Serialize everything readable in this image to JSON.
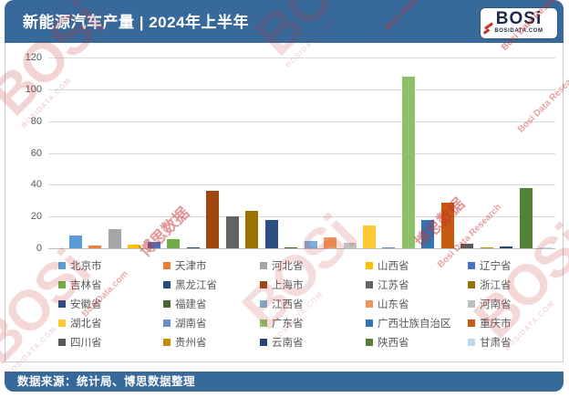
{
  "header": {
    "title": "新能源汽车产量 | 2024年上半年",
    "logo": {
      "text": "BOSi",
      "subtext": "BOSIDATA.COM"
    }
  },
  "footer": {
    "text": "数据来源：统计局、博思数据整理"
  },
  "watermark": {
    "brand": "BOSi",
    "brand_cn": "博思数据",
    "domain": "BOSIDATA.COM",
    "research": "Bosi Data Research",
    "site": "BosiData.com"
  },
  "colors": {
    "header_bg": "#38699B",
    "footer_bg": "#38699B",
    "grid": "#D9D9D9",
    "axis_text": "#595959",
    "watermark_red": "#C53030"
  },
  "chart_data": {
    "type": "bar",
    "title": "新能源汽车产量 | 2024年上半年",
    "xlabel": "",
    "ylabel": "",
    "ylim": [
      0,
      120
    ],
    "yticks": [
      0,
      20,
      40,
      60,
      80,
      100,
      120
    ],
    "grid": true,
    "legend_position": "bottom",
    "series": [
      {
        "name": "北京市",
        "value": 8,
        "color": "#5B9BD5"
      },
      {
        "name": "天津市",
        "value": 2,
        "color": "#ED7D31"
      },
      {
        "name": "河北省",
        "value": 12,
        "color": "#A5A5A5"
      },
      {
        "name": "山西省",
        "value": 2.5,
        "color": "#FFC000"
      },
      {
        "name": "辽宁省",
        "value": 4,
        "color": "#4472C4"
      },
      {
        "name": "吉林省",
        "value": 5.5,
        "color": "#70AD47"
      },
      {
        "name": "黑龙江省",
        "value": 0.6,
        "color": "#1F4E79"
      },
      {
        "name": "上海市",
        "value": 36,
        "color": "#9E480E"
      },
      {
        "name": "江苏省",
        "value": 20,
        "color": "#636363"
      },
      {
        "name": "浙江省",
        "value": 23.5,
        "color": "#997300"
      },
      {
        "name": "安徽省",
        "value": 18,
        "color": "#2E4D80"
      },
      {
        "name": "福建省",
        "value": 0.8,
        "color": "#43682B"
      },
      {
        "name": "江西省",
        "value": 4.5,
        "color": "#7CAFDD"
      },
      {
        "name": "山东省",
        "value": 7,
        "color": "#F1975A"
      },
      {
        "name": "河南省",
        "value": 3.5,
        "color": "#BFBFBF"
      },
      {
        "name": "湖北省",
        "value": 14.5,
        "color": "#FFC933"
      },
      {
        "name": "湖南省",
        "value": 0.8,
        "color": "#698ED0"
      },
      {
        "name": "广东省",
        "value": 108,
        "color": "#8CC168"
      },
      {
        "name": "广西壮族自治区",
        "value": 18,
        "color": "#2E75B6"
      },
      {
        "name": "重庆市",
        "value": 28.5,
        "color": "#C55A11"
      },
      {
        "name": "四川省",
        "value": 3,
        "color": "#595959"
      },
      {
        "name": "贵州省",
        "value": 0.4,
        "color": "#BF8F00"
      },
      {
        "name": "云南省",
        "value": 1.1,
        "color": "#264478"
      },
      {
        "name": "陕西省",
        "value": 38,
        "color": "#548235"
      },
      {
        "name": "甘肃省",
        "value": 0.4,
        "color": "#BDD7EE"
      }
    ]
  }
}
